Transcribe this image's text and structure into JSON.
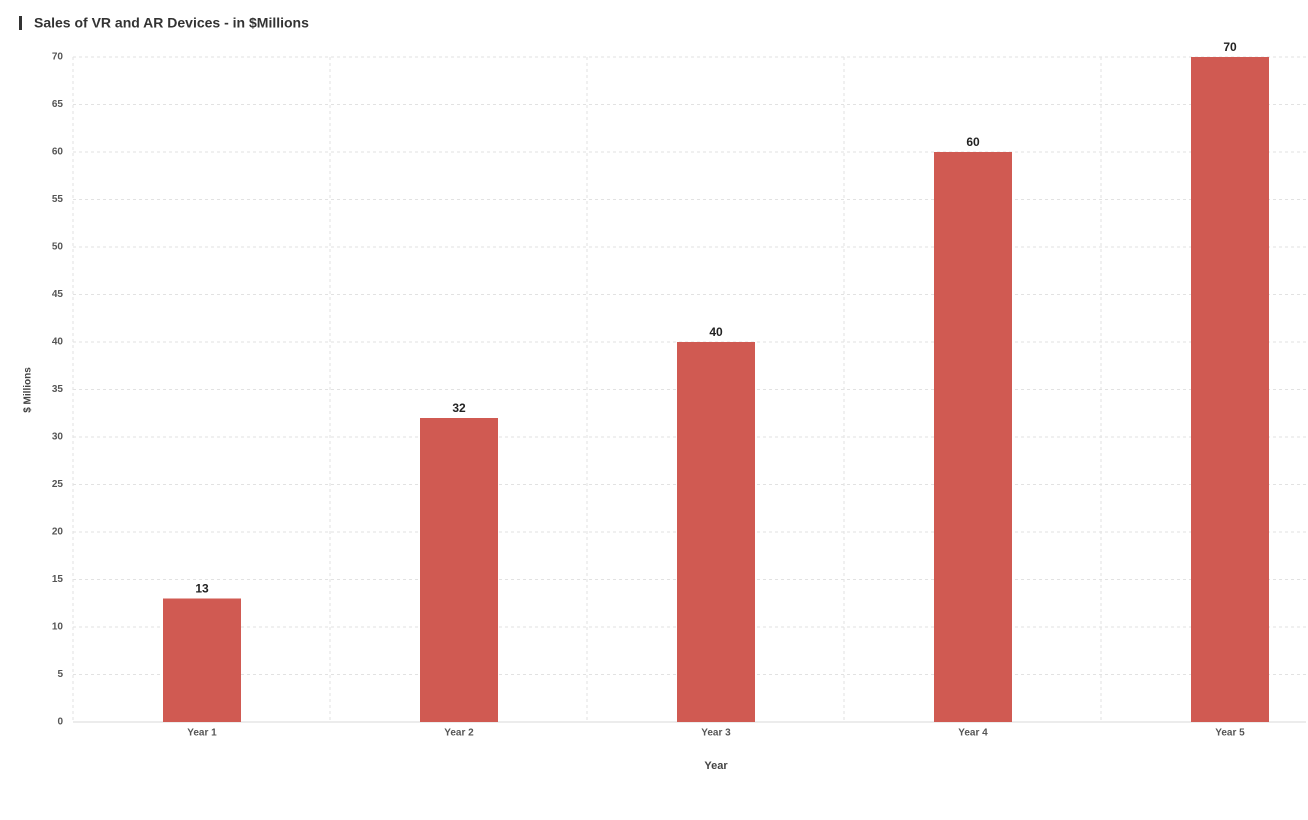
{
  "chart_data": {
    "type": "bar",
    "title": "Sales of VR and AR Devices - in $Millions",
    "x_label": "Year",
    "y_label": "$ Millions",
    "categories": [
      "Year 1",
      "Year 2",
      "Year 3",
      "Year 4",
      "Year 5"
    ],
    "values": [
      13,
      32,
      40,
      60,
      70
    ],
    "color": "#d05a52",
    "ylim": [
      0,
      70
    ],
    "yticks": [
      0,
      5,
      10,
      15,
      20,
      25,
      30,
      35,
      40,
      45,
      50,
      55,
      60,
      65,
      70
    ],
    "grid": true
  }
}
